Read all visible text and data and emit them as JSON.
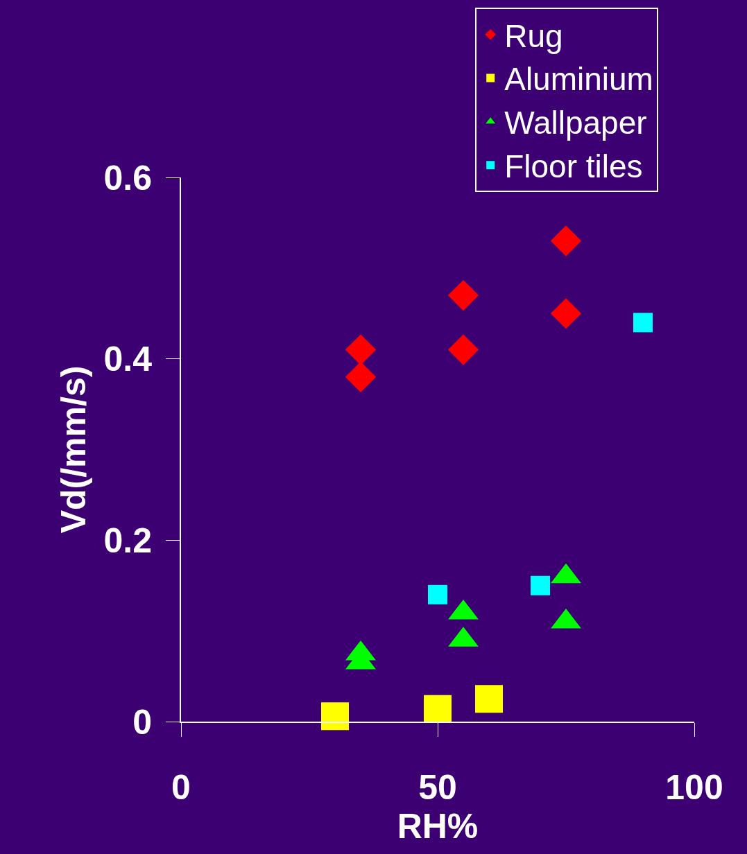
{
  "chart_data": {
    "type": "scatter",
    "xlabel": "RH%",
    "ylabel": "Vd(/mm/s)",
    "xlim": [
      0,
      100
    ],
    "xticks": [
      0,
      50,
      100
    ],
    "ylim": [
      0,
      0.6
    ],
    "yticks": [
      0,
      0.2,
      0.4,
      0.6
    ],
    "grid": false,
    "legend": "top right",
    "series": [
      {
        "name": "Rug",
        "color": "#ff0000",
        "marker": "diamond",
        "x": [
          35,
          35,
          55,
          55,
          75,
          75
        ],
        "values": [
          0.41,
          0.38,
          0.47,
          0.41,
          0.53,
          0.45
        ]
      },
      {
        "name": "Aluminium",
        "color": "#ffff00",
        "marker": "square",
        "x": [
          30,
          50,
          60
        ],
        "values": [
          0.006,
          0.014,
          0.025
        ]
      },
      {
        "name": "Wallpaper",
        "color": "#00ff00",
        "marker": "triangle",
        "x": [
          35,
          35,
          55,
          55,
          75,
          75
        ],
        "values": [
          0.075,
          0.065,
          0.12,
          0.09,
          0.16,
          0.11
        ]
      },
      {
        "name": "Floor tiles",
        "color": "#00ffff",
        "marker": "square",
        "x": [
          50,
          70,
          90
        ],
        "values": [
          0.14,
          0.15,
          0.44
        ]
      }
    ]
  }
}
